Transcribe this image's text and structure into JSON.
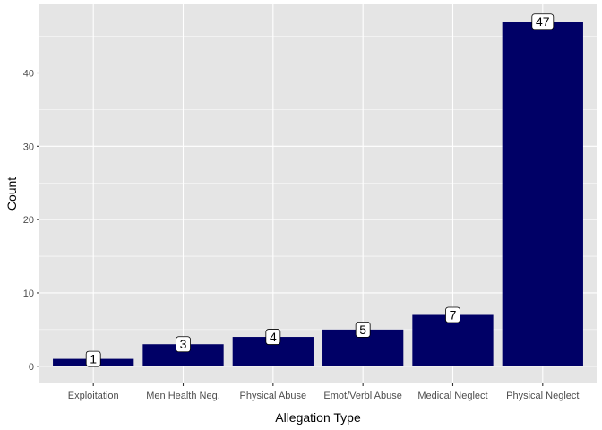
{
  "chart_data": {
    "type": "bar",
    "categories": [
      "Exploitation",
      "Men Health Neg.",
      "Physical Abuse",
      "Emot/Verbl Abuse",
      "Medical Neglect",
      "Physical Neglect"
    ],
    "values": [
      1,
      3,
      4,
      5,
      7,
      47
    ],
    "data_labels": [
      "1",
      "3",
      "4",
      "5",
      "7",
      "47"
    ],
    "xlabel": "Allegation Type",
    "ylabel": "Count",
    "ylim": [
      -2.35,
      49.35
    ],
    "yticks": [
      0,
      10,
      20,
      30,
      40
    ],
    "ytick_labels": [
      "0",
      "10",
      "20",
      "30",
      "40"
    ],
    "grid": true,
    "bar_color": "#000066",
    "panel_color": "#e5e5e5",
    "grid_color": "#ffffff"
  }
}
